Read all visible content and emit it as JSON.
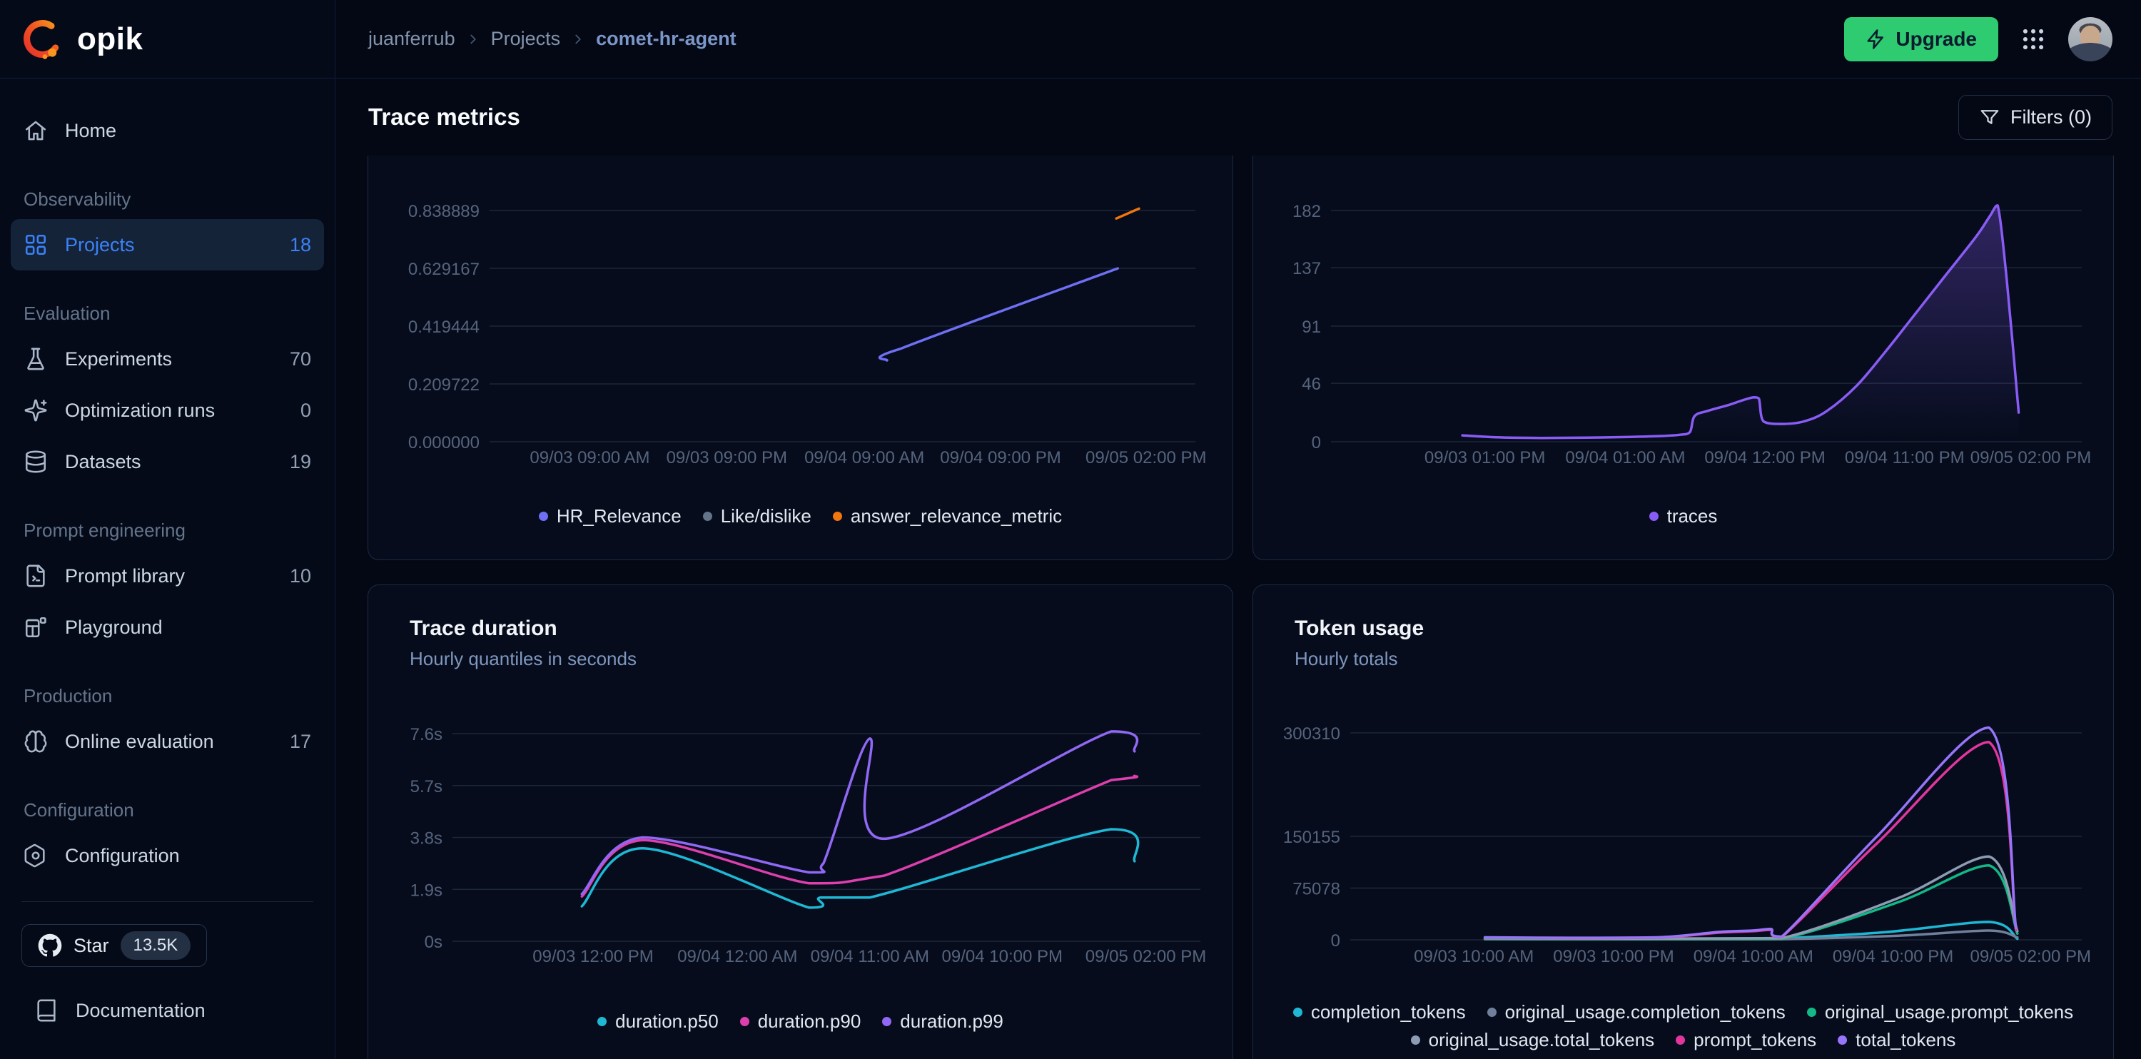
{
  "colors": {
    "page_bg": "#030814",
    "sidebar_bg": "#040a18",
    "card_bg": "#060c1c",
    "card_border": "#1d2a42",
    "accent_blue": "#3b82f6",
    "upgrade_green": "#2ecb71",
    "grid_line": "#1c2739",
    "tick_text": "#55647d",
    "text_primary": "#f1f5f9",
    "text_muted": "#64748b"
  },
  "brand": {
    "logo_text": "opik"
  },
  "breadcrumb": {
    "items": [
      {
        "label": "juanferrub"
      },
      {
        "label": "Projects"
      },
      {
        "label": "comet-hr-agent"
      }
    ]
  },
  "header": {
    "upgrade_label": "Upgrade"
  },
  "page": {
    "title": "Trace metrics",
    "filters_label": "Filters (0)"
  },
  "sidebar": {
    "sections": [
      {
        "title": "",
        "items": [
          {
            "label": "Home",
            "icon": "home",
            "count": "",
            "selected": false
          }
        ]
      },
      {
        "title": "Observability",
        "items": [
          {
            "label": "Projects",
            "icon": "projects",
            "count": "18",
            "selected": true
          }
        ]
      },
      {
        "title": "Evaluation",
        "items": [
          {
            "label": "Experiments",
            "icon": "flask",
            "count": "70",
            "selected": false
          },
          {
            "label": "Optimization runs",
            "icon": "sparkle",
            "count": "0",
            "selected": false
          },
          {
            "label": "Datasets",
            "icon": "database",
            "count": "19",
            "selected": false
          }
        ]
      },
      {
        "title": "Prompt engineering",
        "items": [
          {
            "label": "Prompt library",
            "icon": "file-code",
            "count": "10",
            "selected": false
          },
          {
            "label": "Playground",
            "icon": "playground",
            "count": "",
            "selected": false
          }
        ]
      },
      {
        "title": "Production",
        "items": [
          {
            "label": "Online evaluation",
            "icon": "brain",
            "count": "17",
            "selected": false
          }
        ]
      },
      {
        "title": "Configuration",
        "items": [
          {
            "label": "Configuration",
            "icon": "settings-hex",
            "count": "",
            "selected": false
          }
        ]
      }
    ],
    "footer": {
      "star_label": "Star",
      "star_count": "13.5K",
      "doc_label": "Documentation"
    }
  },
  "chart_data": [
    {
      "type": "line",
      "title": "",
      "subtitle": "",
      "y_axis": {
        "top_value": 0.838889,
        "ticks": [
          {
            "value": 0.838889,
            "label": "0.838889"
          },
          {
            "value": 0.629167,
            "label": "0.629167"
          },
          {
            "value": 0.419444,
            "label": "0.419444"
          },
          {
            "value": 0.209722,
            "label": "0.209722"
          },
          {
            "value": 0.0,
            "label": "0.000000"
          }
        ]
      },
      "x_ticks": [
        {
          "pos": 0.142,
          "label": "09/03 09:00 AM"
        },
        {
          "pos": 0.336,
          "label": "09/03 09:00 PM"
        },
        {
          "pos": 0.531,
          "label": "09/04 09:00 AM"
        },
        {
          "pos": 0.724,
          "label": "09/04 09:00 PM"
        },
        {
          "pos": 0.93,
          "label": "09/05 02:00 PM"
        }
      ],
      "series": [
        {
          "name": "HR_Relevance",
          "color": "#6e6ff3",
          "points": [
            [
              0.563,
              0.295
            ],
            [
              0.582,
              0.337
            ],
            [
              0.89,
              0.629
            ]
          ]
        },
        {
          "name": "Like/dislike",
          "color": "#64748b",
          "points": []
        },
        {
          "name": "answer_relevance_metric",
          "color": "#f2760d",
          "points": [
            [
              0.888,
              0.81
            ],
            [
              0.92,
              0.846
            ]
          ]
        }
      ]
    },
    {
      "type": "area",
      "title": "",
      "subtitle": "",
      "area_fill": true,
      "y_axis": {
        "top_value": 182,
        "ticks": [
          {
            "value": 182,
            "label": "182"
          },
          {
            "value": 137,
            "label": "137"
          },
          {
            "value": 91,
            "label": "91"
          },
          {
            "value": 46,
            "label": "46"
          },
          {
            "value": 0,
            "label": "0"
          }
        ]
      },
      "x_ticks": [
        {
          "pos": 0.205,
          "label": "09/03 01:00 PM"
        },
        {
          "pos": 0.392,
          "label": "09/04 01:00 AM"
        },
        {
          "pos": 0.578,
          "label": "09/04 12:00 PM"
        },
        {
          "pos": 0.764,
          "label": "09/04 11:00 PM"
        },
        {
          "pos": 0.932,
          "label": "09/05 02:00 PM"
        }
      ],
      "series": [
        {
          "name": "traces",
          "color": "#8a5cf6",
          "points": [
            [
              0.175,
              5
            ],
            [
              0.22,
              3.5
            ],
            [
              0.28,
              3
            ],
            [
              0.34,
              3.2
            ],
            [
              0.4,
              3.8
            ],
            [
              0.44,
              4.5
            ],
            [
              0.465,
              5.5
            ],
            [
              0.478,
              7.5
            ],
            [
              0.484,
              20
            ],
            [
              0.5,
              24
            ],
            [
              0.53,
              29
            ],
            [
              0.55,
              33
            ],
            [
              0.563,
              35
            ],
            [
              0.57,
              34
            ],
            [
              0.576,
              16
            ],
            [
              0.6,
              14
            ],
            [
              0.63,
              16
            ],
            [
              0.66,
              24
            ],
            [
              0.7,
              44
            ],
            [
              0.74,
              72
            ],
            [
              0.78,
              102
            ],
            [
              0.82,
              132
            ],
            [
              0.86,
              162
            ],
            [
              0.878,
              178
            ],
            [
              0.888,
              186
            ],
            [
              0.9,
              128
            ],
            [
              0.916,
              23
            ]
          ]
        }
      ]
    },
    {
      "type": "line",
      "title": "Trace duration",
      "subtitle": "Hourly quantiles in seconds",
      "y_axis": {
        "top_value": 7.6,
        "ticks": [
          {
            "value": 7.6,
            "label": "7.6s"
          },
          {
            "value": 5.7,
            "label": "5.7s"
          },
          {
            "value": 3.8,
            "label": "3.8s"
          },
          {
            "value": 1.9,
            "label": "1.9s"
          },
          {
            "value": 0,
            "label": "0s"
          }
        ]
      },
      "x_ticks": [
        {
          "pos": 0.188,
          "label": "09/03 12:00 PM"
        },
        {
          "pos": 0.381,
          "label": "09/04 12:00 AM"
        },
        {
          "pos": 0.558,
          "label": "09/04 11:00 AM"
        },
        {
          "pos": 0.735,
          "label": "09/04 10:00 PM"
        },
        {
          "pos": 0.927,
          "label": "09/05 02:00 PM"
        }
      ],
      "series": [
        {
          "name": "duration.p50",
          "color": "#1fb8d4",
          "points": [
            [
              0.173,
              1.28
            ],
            [
              0.254,
              3.4
            ],
            [
              0.477,
              1.23
            ],
            [
              0.492,
              1.6
            ],
            [
              0.558,
              1.6
            ],
            [
              0.881,
              4.1
            ],
            [
              0.912,
              2.93
            ]
          ]
        },
        {
          "name": "duration.p90",
          "color": "#dd3fae",
          "points": [
            [
              0.173,
              1.64
            ],
            [
              0.254,
              3.7
            ],
            [
              0.477,
              2.12
            ],
            [
              0.577,
              2.4
            ],
            [
              0.881,
              5.9
            ],
            [
              0.912,
              6.05
            ]
          ]
        },
        {
          "name": "duration.p99",
          "color": "#9068f4",
          "points": [
            [
              0.173,
              1.73
            ],
            [
              0.254,
              3.8
            ],
            [
              0.477,
              2.52
            ],
            [
              0.496,
              2.85
            ],
            [
              0.558,
              7.42
            ],
            [
              0.577,
              3.75
            ],
            [
              0.881,
              7.68
            ],
            [
              0.912,
              6.95
            ]
          ]
        }
      ]
    },
    {
      "type": "line",
      "title": "Token usage",
      "subtitle": "Hourly totals",
      "y_axis": {
        "top_value": 300310,
        "ticks": [
          {
            "value": 300310,
            "label": "300310"
          },
          {
            "value": 150155,
            "label": "150155"
          },
          {
            "value": 75078,
            "label": "75078"
          },
          {
            "value": 0,
            "label": "0"
          }
        ]
      },
      "x_ticks": [
        {
          "pos": 0.169,
          "label": "09/03 10:00 AM"
        },
        {
          "pos": 0.36,
          "label": "09/03 10:00 PM"
        },
        {
          "pos": 0.551,
          "label": "09/04 10:00 AM"
        },
        {
          "pos": 0.742,
          "label": "09/04 10:00 PM"
        },
        {
          "pos": 0.93,
          "label": "09/05 02:00 PM"
        }
      ],
      "series": [
        {
          "name": "completion_tokens",
          "color": "#1fb8d4",
          "points": [
            [
              0.184,
              1800
            ],
            [
              0.3,
              1200
            ],
            [
              0.42,
              1500
            ],
            [
              0.513,
              2000
            ],
            [
              0.575,
              2500
            ],
            [
              0.59,
              2000
            ],
            [
              0.73,
              11000
            ],
            [
              0.873,
              26000
            ],
            [
              0.912,
              1500
            ]
          ]
        },
        {
          "name": "original_usage.completion_tokens",
          "color": "#70809a",
          "points": [
            [
              0.184,
              900
            ],
            [
              0.35,
              700
            ],
            [
              0.5,
              800
            ],
            [
              0.59,
              900
            ],
            [
              0.75,
              6000
            ],
            [
              0.873,
              13500
            ],
            [
              0.912,
              3500
            ]
          ]
        },
        {
          "name": "original_usage.prompt_tokens",
          "color": "#12b886",
          "points": [
            [
              0.184,
              1400
            ],
            [
              0.35,
              1100
            ],
            [
              0.5,
              1300
            ],
            [
              0.59,
              1500
            ],
            [
              0.75,
              55000
            ],
            [
              0.873,
              108000
            ],
            [
              0.912,
              9000
            ]
          ]
        },
        {
          "name": "original_usage.total_tokens",
          "color": "#8d9cb2",
          "points": [
            [
              0.184,
              2300
            ],
            [
              0.35,
              1800
            ],
            [
              0.5,
              2100
            ],
            [
              0.59,
              2400
            ],
            [
              0.75,
              61000
            ],
            [
              0.873,
              121000
            ],
            [
              0.912,
              12500
            ]
          ]
        },
        {
          "name": "prompt_tokens",
          "color": "#e0369e",
          "points": [
            [
              0.184,
              3200
            ],
            [
              0.3,
              2600
            ],
            [
              0.42,
              3200
            ],
            [
              0.505,
              10500
            ],
            [
              0.55,
              12500
            ],
            [
              0.575,
              14500
            ],
            [
              0.59,
              4200
            ],
            [
              0.72,
              140000
            ],
            [
              0.873,
              287000
            ],
            [
              0.91,
              14000
            ]
          ]
        },
        {
          "name": "total_tokens",
          "color": "#9775fa",
          "points": [
            [
              0.184,
              3600
            ],
            [
              0.3,
              3000
            ],
            [
              0.42,
              3600
            ],
            [
              0.505,
              11500
            ],
            [
              0.55,
              13500
            ],
            [
              0.575,
              15800
            ],
            [
              0.59,
              4800
            ],
            [
              0.72,
              150000
            ],
            [
              0.873,
              308000
            ],
            [
              0.91,
              17000
            ]
          ]
        }
      ]
    }
  ]
}
